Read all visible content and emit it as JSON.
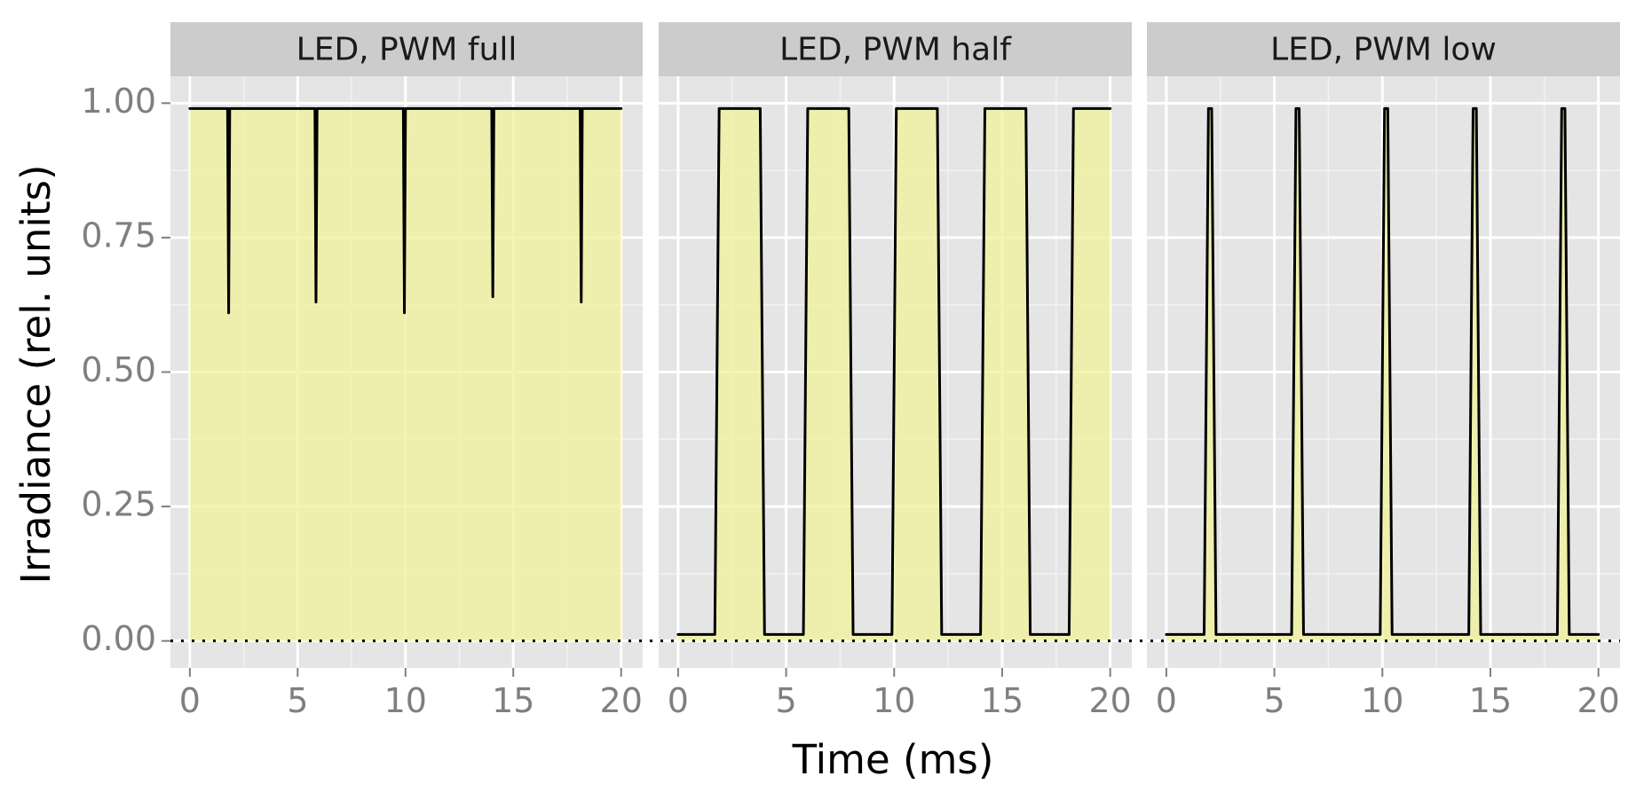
{
  "chart_data": {
    "type": "area",
    "facet_titles": [
      "LED, PWM full",
      "LED, PWM half",
      "LED, PWM low"
    ],
    "xlabel": "Time (ms)",
    "ylabel": "Irradiance (rel. units)",
    "xlim": [
      -0.9,
      21.0
    ],
    "ylim": [
      -0.05,
      1.05
    ],
    "x_ticks": [
      0,
      5,
      10,
      15,
      20
    ],
    "x_tick_labels": [
      "0",
      "5",
      "10",
      "15",
      "20"
    ],
    "y_ticks": [
      0.0,
      0.25,
      0.5,
      0.75,
      1.0
    ],
    "y_tick_labels": [
      "0.00",
      "0.25",
      "0.50",
      "0.75",
      "1.00"
    ],
    "grid": true,
    "reference_line_y": 0.0,
    "colors": {
      "panel_bg": "#e5e5e5",
      "strip_bg": "#cccccc",
      "grid_major": "#ffffff",
      "grid_minor": "#f2f2f2",
      "fill": "#f2f299",
      "line": "#000000",
      "tick_label": "#7f7f7f"
    },
    "series": [
      {
        "panel": "LED, PWM full",
        "x": [
          0.0,
          1.75,
          1.8,
          1.85,
          1.9,
          5.8,
          5.85,
          5.9,
          5.95,
          9.9,
          9.95,
          10.0,
          10.05,
          14.0,
          14.05,
          14.1,
          14.15,
          18.1,
          18.15,
          18.2,
          18.25,
          20.0
        ],
        "y": [
          0.99,
          0.99,
          0.61,
          0.99,
          0.99,
          0.99,
          0.63,
          0.99,
          0.99,
          0.99,
          0.61,
          0.99,
          0.99,
          0.99,
          0.64,
          0.99,
          0.99,
          0.99,
          0.63,
          0.99,
          0.99,
          0.99
        ]
      },
      {
        "panel": "LED, PWM half",
        "x": [
          0.0,
          1.7,
          1.9,
          3.8,
          4.0,
          5.8,
          6.0,
          7.9,
          8.1,
          9.9,
          10.1,
          12.0,
          12.2,
          14.0,
          14.2,
          16.1,
          16.3,
          18.1,
          18.3,
          20.0
        ],
        "y": [
          0.012,
          0.012,
          0.99,
          0.99,
          0.012,
          0.012,
          0.99,
          0.99,
          0.012,
          0.012,
          0.99,
          0.99,
          0.012,
          0.012,
          0.99,
          0.99,
          0.012,
          0.012,
          0.99,
          0.99
        ]
      },
      {
        "panel": "LED, PWM low",
        "x": [
          0.0,
          1.75,
          1.95,
          2.1,
          2.3,
          5.8,
          6.0,
          6.15,
          6.35,
          9.9,
          10.1,
          10.25,
          10.45,
          14.0,
          14.2,
          14.35,
          14.55,
          18.1,
          18.3,
          18.45,
          18.65,
          20.0
        ],
        "y": [
          0.012,
          0.012,
          0.99,
          0.99,
          0.012,
          0.012,
          0.99,
          0.99,
          0.012,
          0.012,
          0.99,
          0.99,
          0.012,
          0.012,
          0.99,
          0.99,
          0.012,
          0.012,
          0.99,
          0.99,
          0.012,
          0.012
        ]
      }
    ]
  }
}
